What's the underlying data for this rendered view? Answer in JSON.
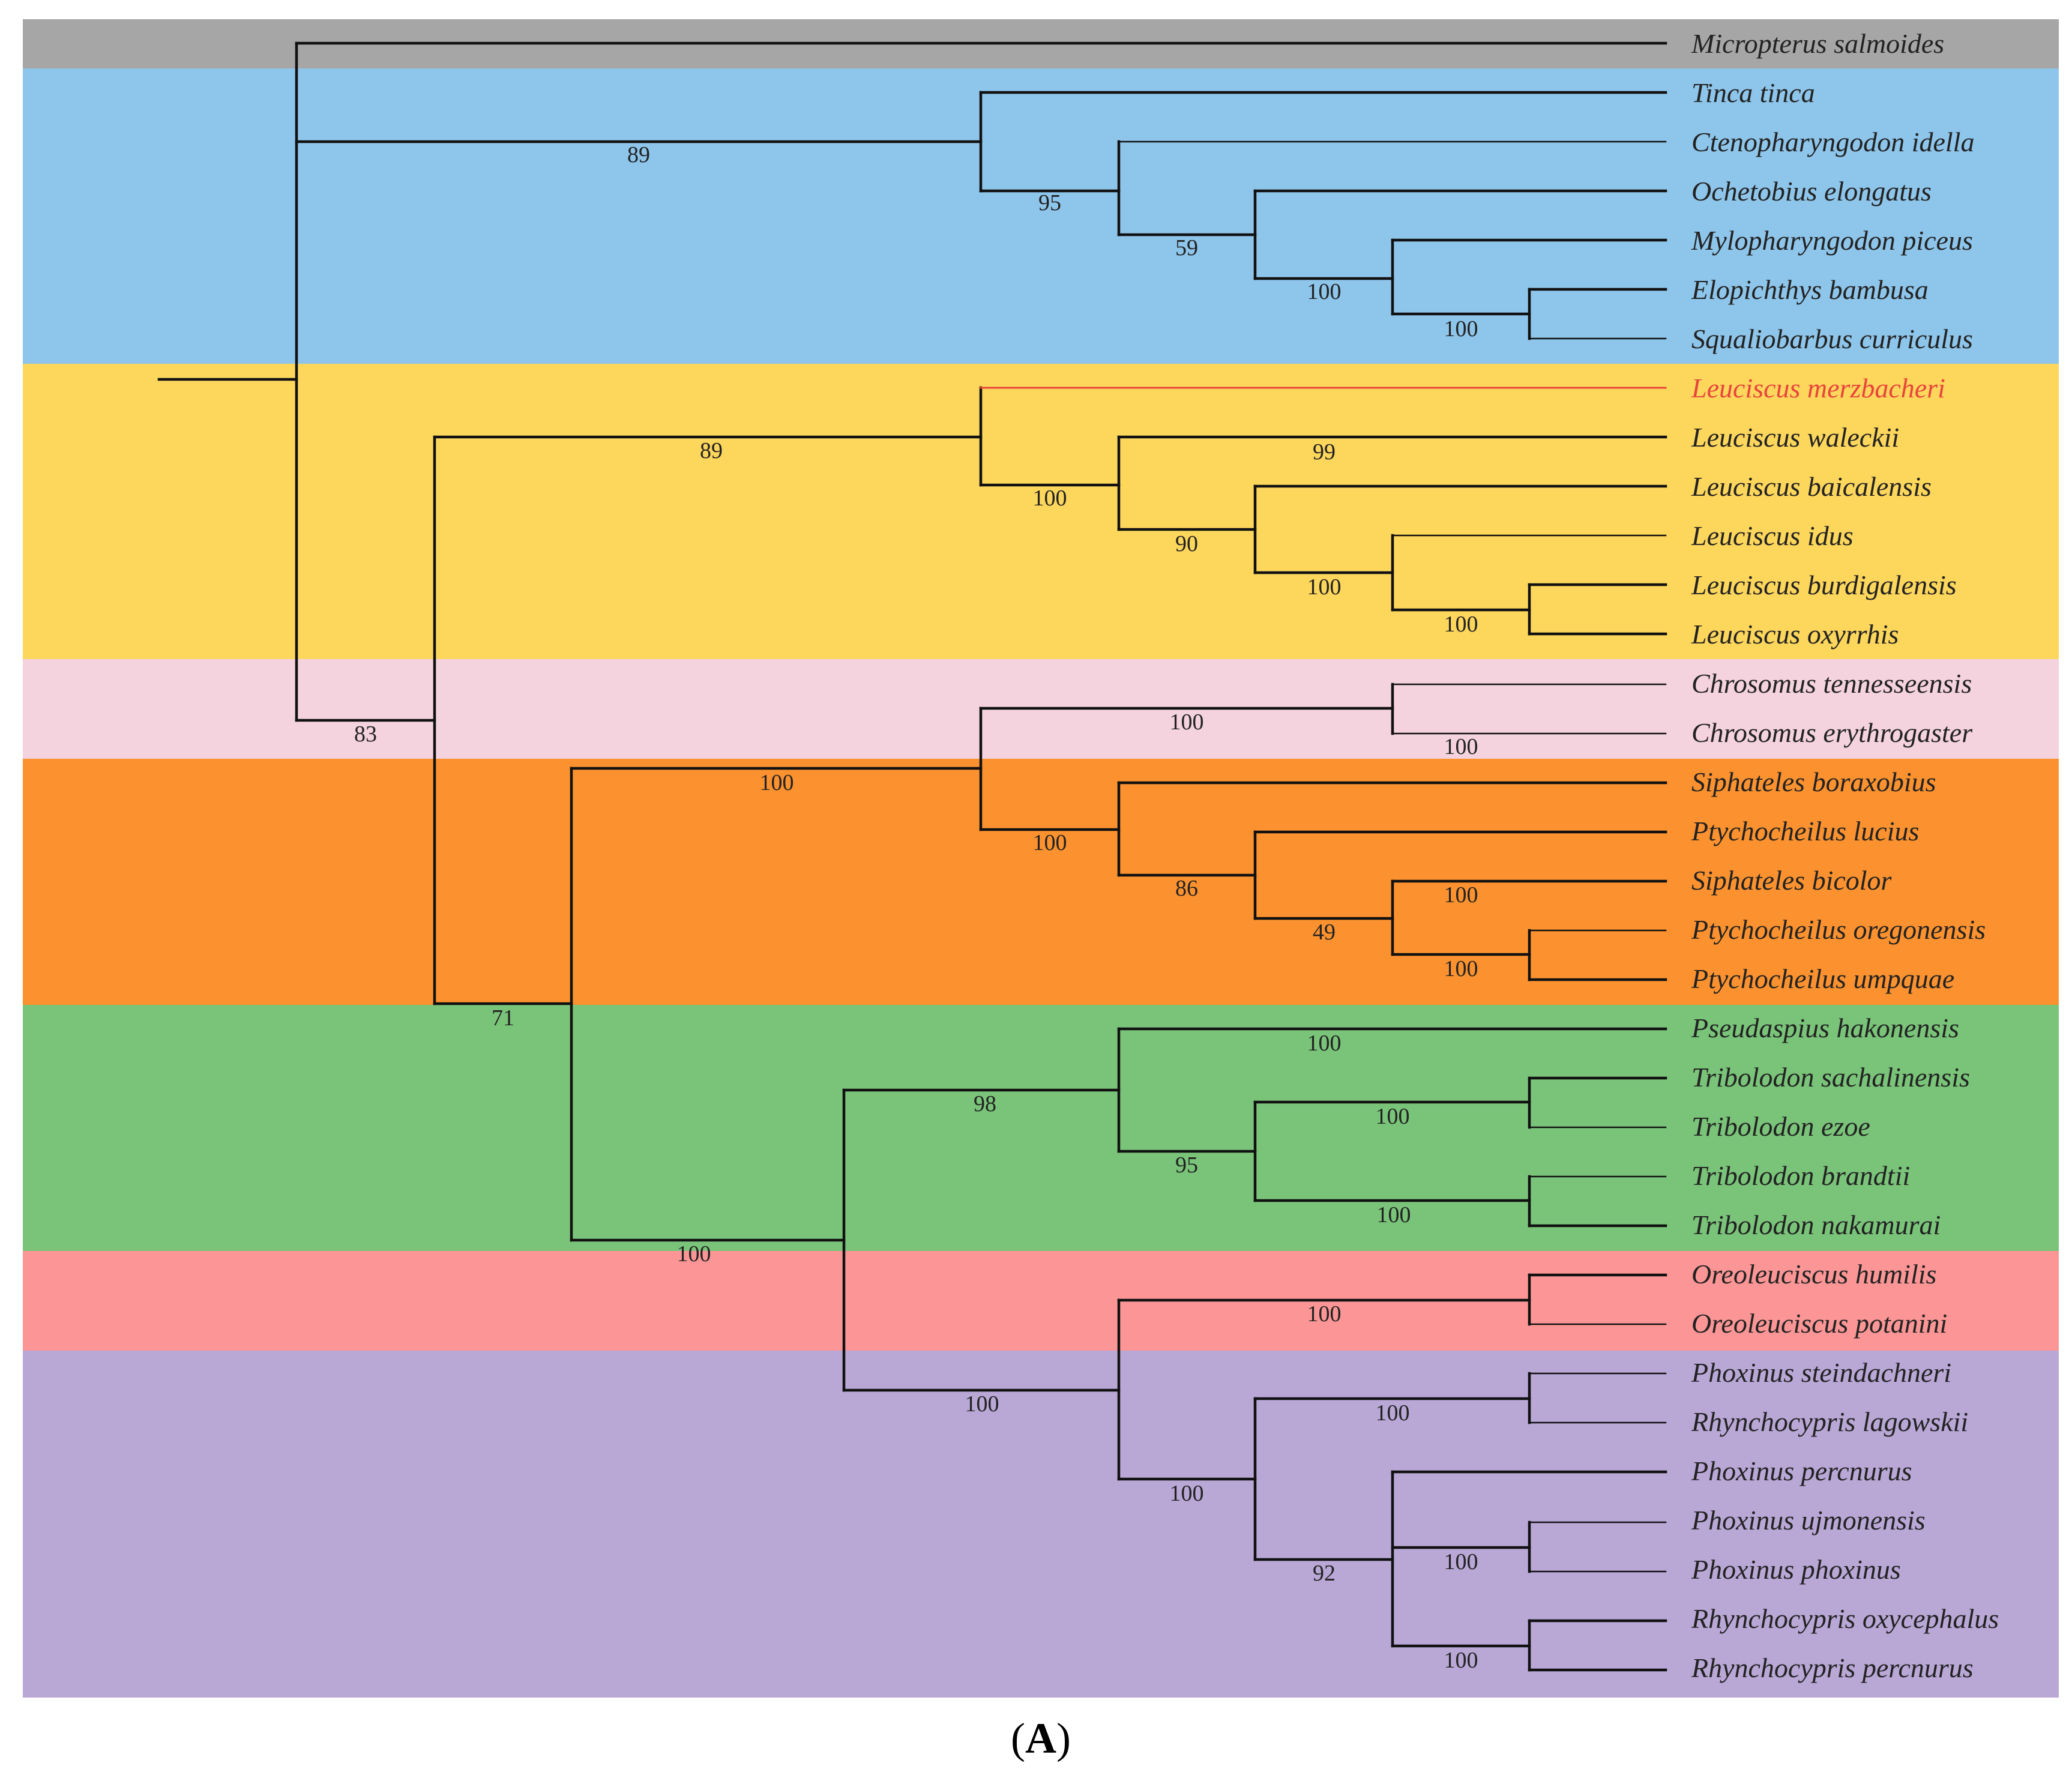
{
  "clade_colors": {
    "outgroup": "#a6a6a6",
    "blue": "#8ec5ea",
    "yellow": "#fdd65c",
    "pink": "#f4d3df",
    "orange": "#fc922f",
    "green": "#7ac47a",
    "red": "#fc9696",
    "purple": "#b9a7d6"
  },
  "taxa": [
    {
      "name": "Micropterus salmoides"
    },
    {
      "name": "Tinca tinca"
    },
    {
      "name": "Ctenopharyngodon idella"
    },
    {
      "name": "Ochetobius elongatus"
    },
    {
      "name": "Mylopharyngodon piceus"
    },
    {
      "name": "Elopichthys bambusa"
    },
    {
      "name": "Squaliobarbus curriculus"
    },
    {
      "name": "Leuciscus merzbacheri",
      "highlight": true
    },
    {
      "name": "Leuciscus waleckii"
    },
    {
      "name": "Leuciscus baicalensis"
    },
    {
      "name": "Leuciscus idus"
    },
    {
      "name": "Leuciscus burdigalensis"
    },
    {
      "name": "Leuciscus oxyrrhis"
    },
    {
      "name": "Chrosomus tennesseensis"
    },
    {
      "name": "Chrosomus erythrogaster"
    },
    {
      "name": "Siphateles boraxobius"
    },
    {
      "name": "Ptychocheilus lucius"
    },
    {
      "name": "Siphateles bicolor"
    },
    {
      "name": "Ptychocheilus oregonensis"
    },
    {
      "name": "Ptychocheilus umpquae"
    },
    {
      "name": "Pseudaspius hakonensis"
    },
    {
      "name": "Tribolodon sachalinensis"
    },
    {
      "name": "Tribolodon ezoe"
    },
    {
      "name": "Tribolodon brandtii"
    },
    {
      "name": "Tribolodon nakamurai"
    },
    {
      "name": "Oreoleuciscus humilis"
    },
    {
      "name": "Oreoleuciscus potanini"
    },
    {
      "name": "Phoxinus steindachneri"
    },
    {
      "name": "Rhynchocypris lagowskii"
    },
    {
      "name": "Phoxinus percnurus"
    },
    {
      "name": "Phoxinus ujmonensis"
    },
    {
      "name": "Phoxinus phoxinus"
    },
    {
      "name": "Rhynchocypris oxycephalus"
    },
    {
      "name": "Rhynchocypris percnurus"
    }
  ],
  "support_values": [
    "89",
    "95",
    "59",
    "100",
    "100",
    "83",
    "89",
    "100",
    "90",
    "100",
    "100",
    "99",
    "71",
    "100",
    "100",
    "100",
    "100",
    "86",
    "49",
    "100",
    "100",
    "100",
    "98",
    "95",
    "100",
    "100",
    "100",
    "100",
    "100",
    "100",
    "100",
    "92",
    "100",
    "100"
  ],
  "caption": {
    "open": "(",
    "letter": "A",
    "close": ")"
  }
}
